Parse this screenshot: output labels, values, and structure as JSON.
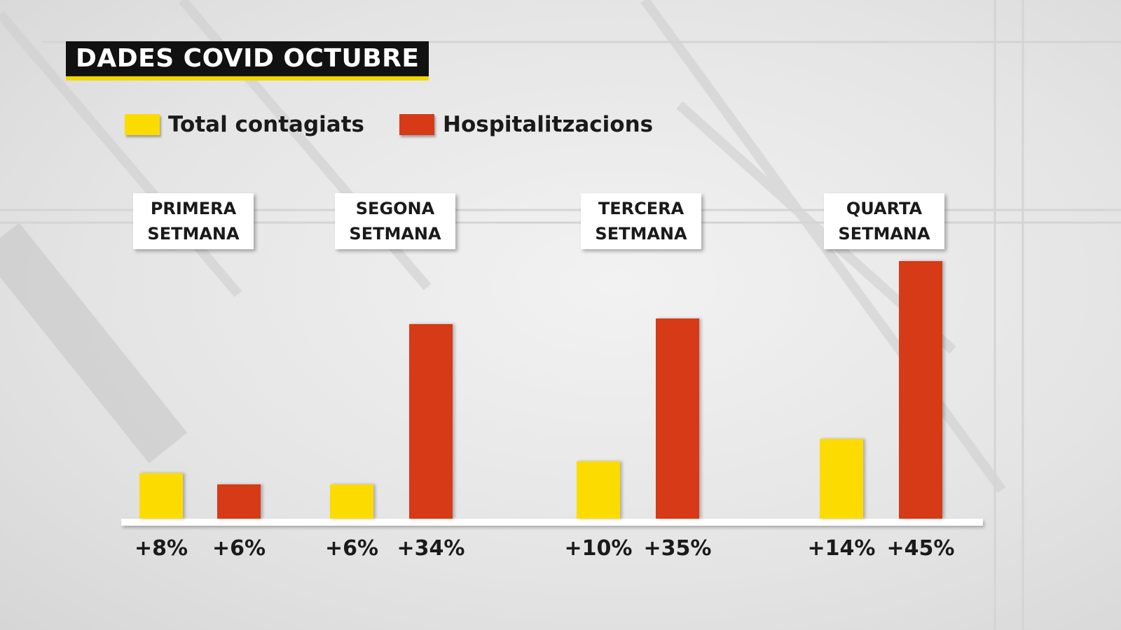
{
  "chart_data": {
    "type": "bar",
    "title": "DADES COVID OCTUBRE",
    "categories": [
      "PRIMERA SETMANA",
      "SEGONA SETMANA",
      "TERCERA SETMANA",
      "QUARTA SETMANA"
    ],
    "series": [
      {
        "name": "Total contagiats",
        "color": "#fcdc00",
        "values": [
          8,
          6,
          10,
          14
        ],
        "value_labels": [
          "+8%",
          "+6%",
          "+10%",
          "+14%"
        ]
      },
      {
        "name": "Hospitalitzacions",
        "color": "#d63a16",
        "values": [
          6,
          34,
          35,
          45
        ],
        "value_labels": [
          "+6%",
          "+34%",
          "+35%",
          "+45%"
        ]
      }
    ]
  }
}
